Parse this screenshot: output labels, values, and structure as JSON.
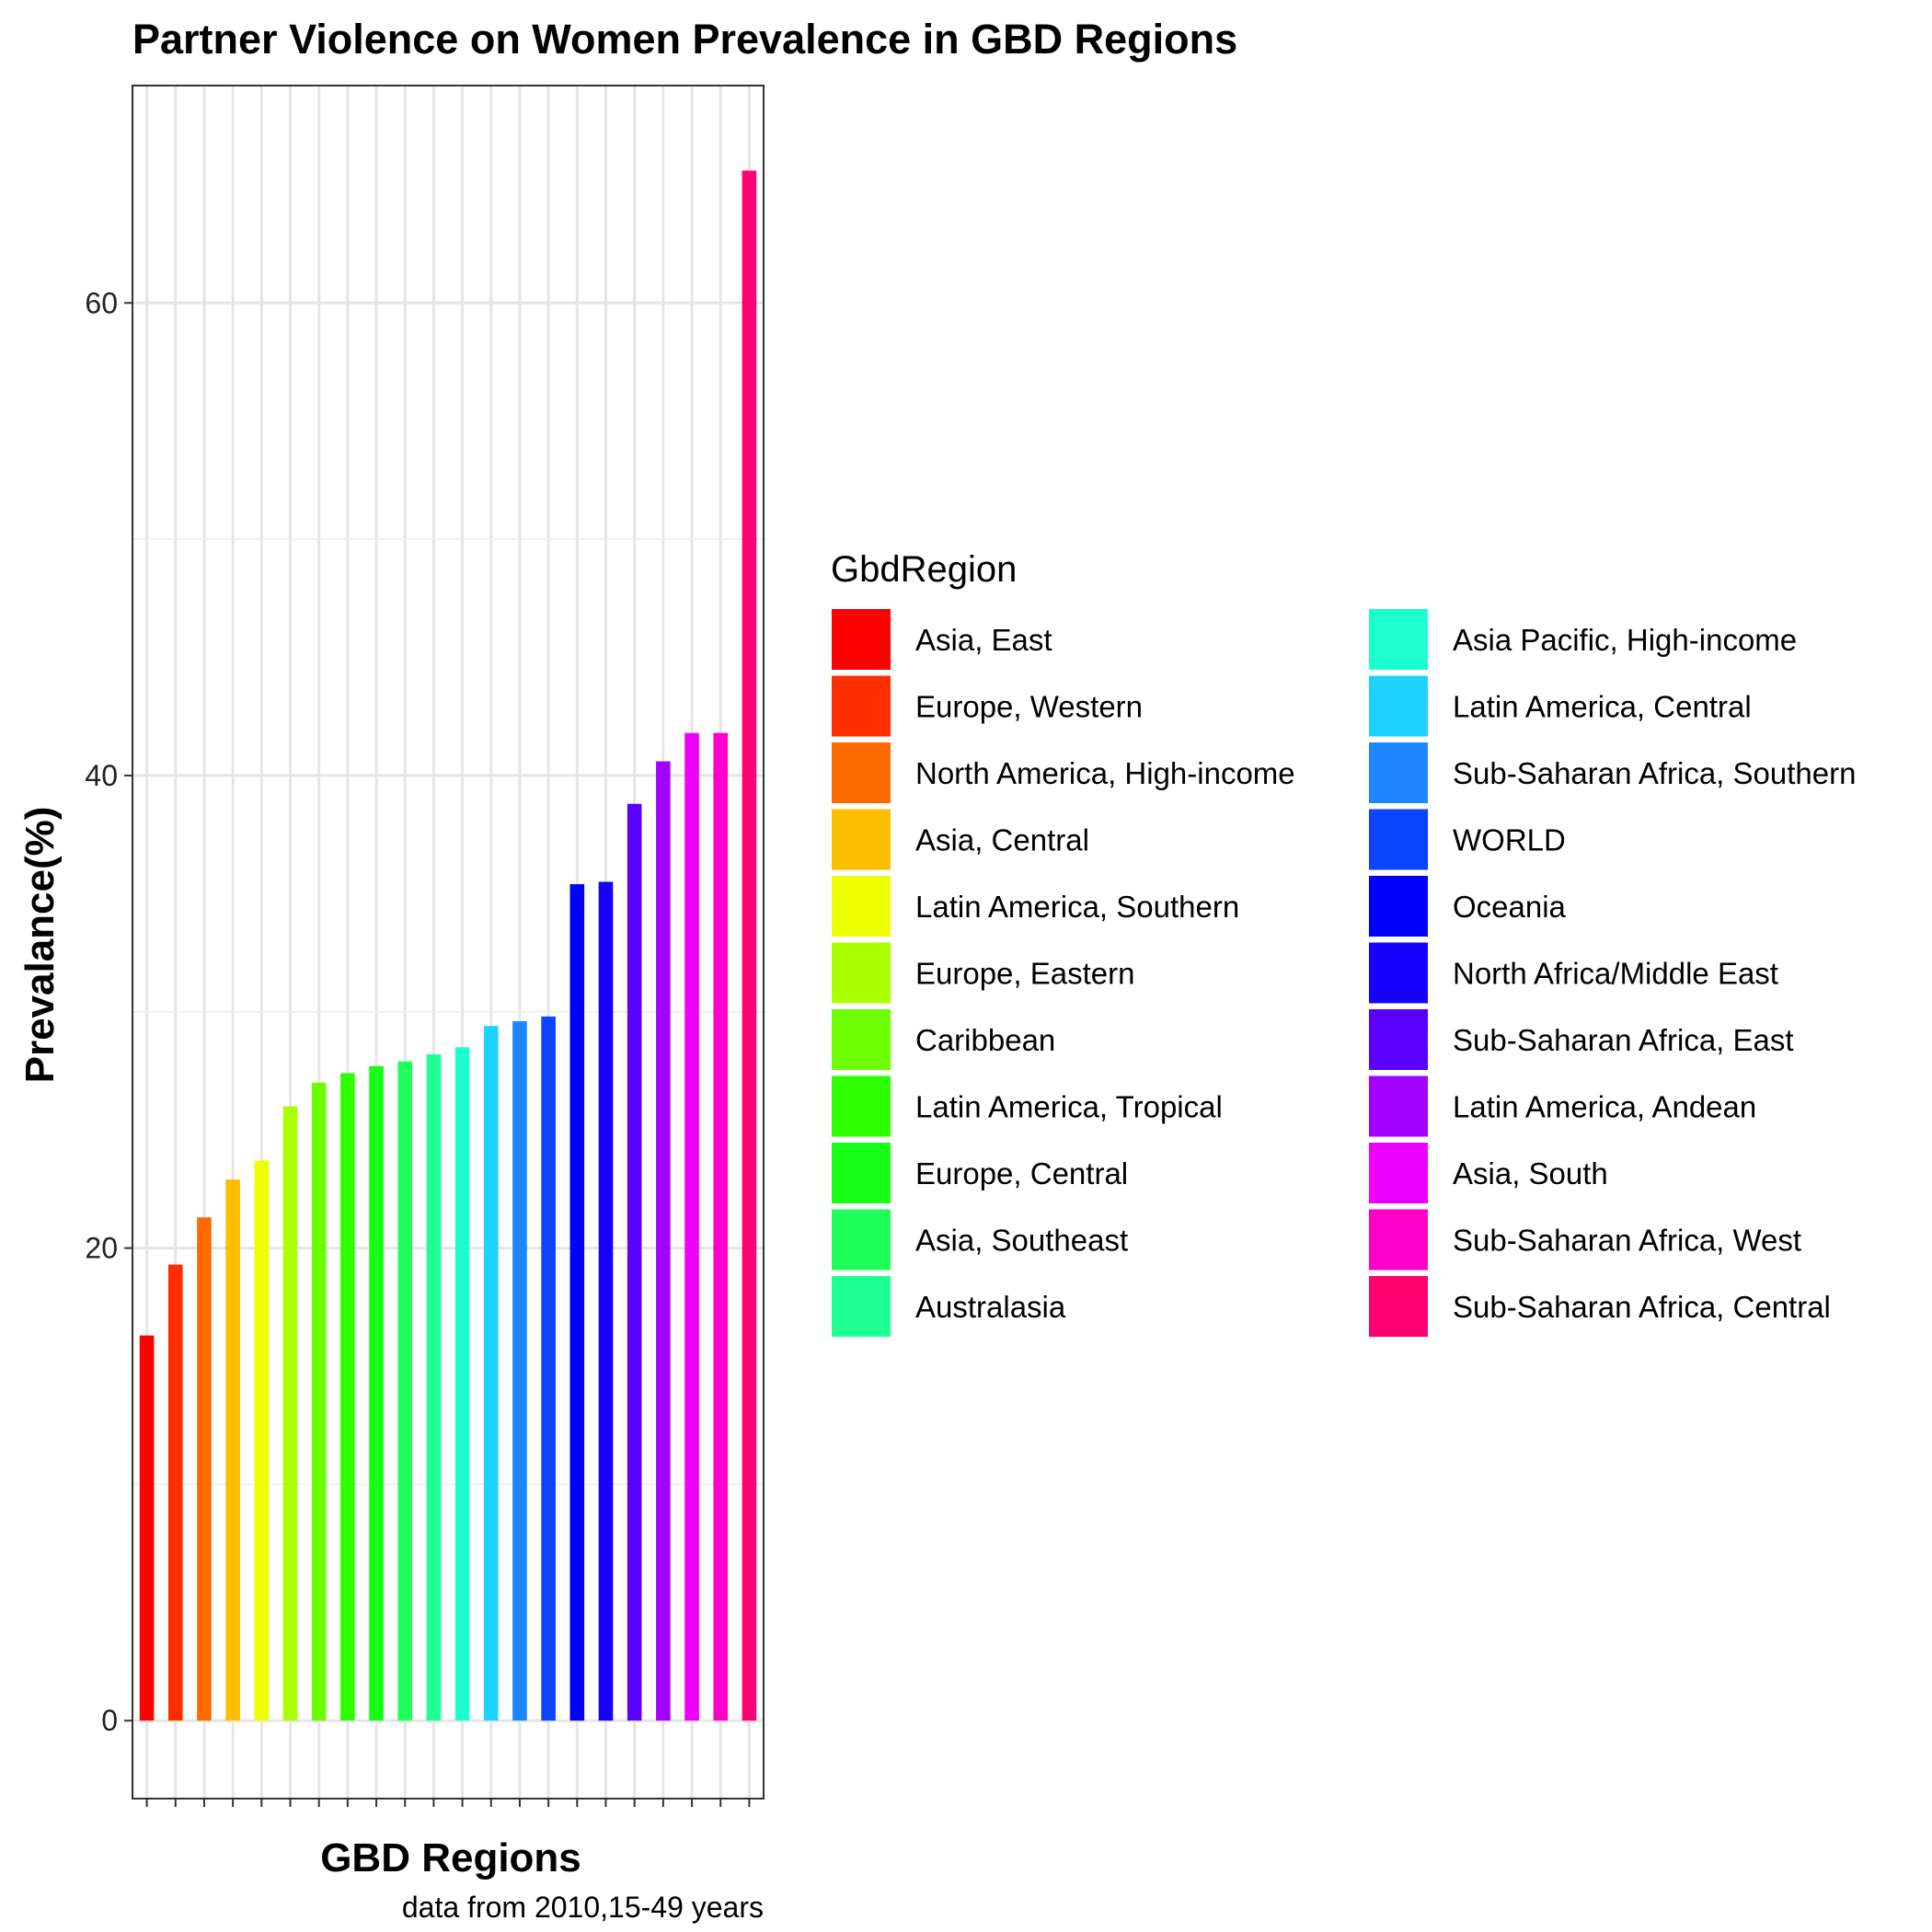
{
  "chart_data": {
    "type": "bar",
    "title": "Partner Violence on  Women Prevalence in GBD Regions",
    "xlabel": "GBD Regions",
    "ylabel": "Prevalance(%)",
    "caption": "data from 2010,15-49 years",
    "ylim": [
      -3.3,
      69.2
    ],
    "yticks": [
      0,
      20,
      40,
      60
    ],
    "grid": true,
    "x_tick_labels_shown": false,
    "legend": {
      "title": "GbdRegion",
      "placement": "right",
      "columns": 2
    },
    "categories": [
      "Asia, East",
      "Europe, Western",
      "North America, High-income",
      "Asia, Central",
      "Latin America, Southern",
      "Europe, Eastern",
      "Caribbean",
      "Latin America, Tropical",
      "Europe, Central",
      "Asia, Southeast",
      "Australasia",
      "Asia Pacific, High-income",
      "Latin America, Central",
      "Sub-Saharan Africa, Southern",
      "WORLD",
      "Oceania",
      "North Africa/Middle East",
      "Sub-Saharan Africa, East",
      "Latin America, Andean",
      "Asia, South",
      "Sub-Saharan Africa, West",
      "Sub-Saharan Africa, Central"
    ],
    "values": [
      16.3,
      19.3,
      21.3,
      22.9,
      23.7,
      26.0,
      27.0,
      27.4,
      27.7,
      27.9,
      28.2,
      28.5,
      29.4,
      29.6,
      29.8,
      35.4,
      35.5,
      38.8,
      40.6,
      41.8,
      41.8,
      65.6
    ],
    "colors": [
      "#FF0000",
      "#FF2E00",
      "#FF6A00",
      "#FFBF00",
      "#EEFF00",
      "#AAFF00",
      "#6CFF00",
      "#2EFF00",
      "#16FF16",
      "#1EFF5A",
      "#1EFF96",
      "#1EFFD0",
      "#1ED2FF",
      "#1E87FF",
      "#0A44FF",
      "#0000FF",
      "#1800FF",
      "#5A00FF",
      "#A400FF",
      "#EE00FF",
      "#FF00C8",
      "#FF006E"
    ]
  }
}
